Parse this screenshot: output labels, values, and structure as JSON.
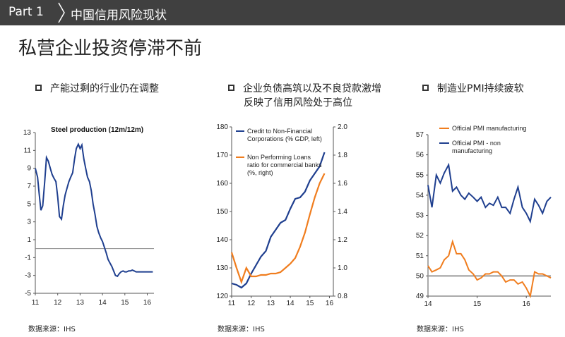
{
  "header": {
    "part": "Part  1",
    "title": "中国信用风险现状"
  },
  "main_title": "私营企业投资停滞不前",
  "bullets": [
    {
      "line1": "产能过剩的行业仍在调整",
      "line2": ""
    },
    {
      "line1": "企业负债高筑以及不良贷款激增",
      "line2": "反映了信用风险处于高位"
    },
    {
      "line1": "制造业PMI持续疲软",
      "line2": ""
    }
  ],
  "sources": [
    "数据来源：IHS",
    "数据来源：IHS",
    "数据来源：IHS"
  ],
  "colors": {
    "navy": "#1f3f8f",
    "orange": "#f07d1e",
    "header_bg": "#404040",
    "gray_line": "#9a9a9a"
  },
  "chart_data": [
    {
      "type": "line",
      "title": "Steel production (12m/12m)",
      "xlabel": "",
      "ylabel": "",
      "x_ticks": [
        "11",
        "12",
        "13",
        "14",
        "15",
        "16"
      ],
      "ylim": [
        -5,
        13
      ],
      "y_ticks": [
        13,
        11,
        9,
        7,
        5,
        3,
        1,
        -1,
        -3,
        -5
      ],
      "series": [
        {
          "name": "Steel production (12m/12m)",
          "color": "#1f3f8f",
          "x": [
            11.0,
            11.1,
            11.17,
            11.25,
            11.33,
            11.42,
            11.5,
            11.58,
            11.67,
            11.75,
            11.83,
            11.92,
            12.0,
            12.08,
            12.17,
            12.25,
            12.33,
            12.42,
            12.5,
            12.58,
            12.67,
            12.75,
            12.83,
            12.92,
            13.0,
            13.08,
            13.17,
            13.25,
            13.33,
            13.42,
            13.5,
            13.58,
            13.67,
            13.75,
            13.83,
            13.92,
            14.0,
            14.08,
            14.17,
            14.25,
            14.33,
            14.42,
            14.5,
            14.58,
            14.67,
            14.75,
            14.83,
            14.92,
            15.0,
            15.08,
            15.17,
            15.25,
            15.33,
            15.42,
            15.5,
            15.58,
            15.67,
            15.75,
            15.83,
            15.92,
            16.0,
            16.08,
            16.17,
            16.25
          ],
          "y": [
            9,
            8,
            6.2,
            4.3,
            4.8,
            7.5,
            10.2,
            9.8,
            9.0,
            8.3,
            7.9,
            7.5,
            5.8,
            3.6,
            3.3,
            4.8,
            6.0,
            6.8,
            7.5,
            8.0,
            8.5,
            10.0,
            11.2,
            11.7,
            11.2,
            11.6,
            10.0,
            9.0,
            8.0,
            7.5,
            6.5,
            5.0,
            3.8,
            2.5,
            1.8,
            1.2,
            0.8,
            0.2,
            -0.5,
            -1.2,
            -1.6,
            -2.0,
            -2.5,
            -3.0,
            -3.1,
            -2.8,
            -2.6,
            -2.5,
            -2.6,
            -2.6,
            -2.5,
            -2.5,
            -2.4,
            -2.5,
            -2.6,
            -2.6,
            -2.6,
            -2.6,
            -2.6,
            -2.6,
            -2.6,
            -2.6,
            -2.6,
            -2.6
          ]
        }
      ]
    },
    {
      "type": "line",
      "x_ticks": [
        "11",
        "12",
        "13",
        "14",
        "15",
        "16"
      ],
      "ylim_left": [
        120,
        180
      ],
      "y_ticks_left": [
        180,
        170,
        160,
        150,
        140,
        130,
        120
      ],
      "ylim_right": [
        0.8,
        2.0
      ],
      "y_ticks_right": [
        "2.0",
        "1.8",
        "1.6",
        "1.4",
        "1.2",
        "1.0",
        "0.8"
      ],
      "series": [
        {
          "name": "Credit to Non-Financial Corporations (% GDP, left)",
          "axis": "left",
          "color": "#1f3f8f",
          "legend_lines": [
            "Credit to Non-Financial",
            "Corporations (% GDP, left)"
          ],
          "x": [
            11.0,
            11.25,
            11.5,
            11.75,
            12.0,
            12.25,
            12.5,
            12.75,
            13.0,
            13.25,
            13.5,
            13.75,
            14.0,
            14.25,
            14.5,
            14.75,
            15.0,
            15.25,
            15.5,
            15.75
          ],
          "y": [
            124.5,
            124.0,
            123.0,
            124.5,
            128.0,
            131.0,
            134.0,
            136.0,
            141.0,
            143.5,
            146.0,
            147.0,
            151.0,
            154.5,
            155.0,
            157.0,
            161.0,
            163.5,
            166.0,
            171.0
          ]
        },
        {
          "name": "Non Performing Loans ratio for commercial banks (%, right)",
          "axis": "right",
          "color": "#f07d1e",
          "legend_lines": [
            "Non Performing Loans",
            "ratio for commercial banks",
            "(%, right)"
          ],
          "x": [
            11.0,
            11.25,
            11.5,
            11.75,
            12.0,
            12.25,
            12.5,
            12.75,
            13.0,
            13.25,
            13.5,
            13.75,
            14.0,
            14.25,
            14.5,
            14.75,
            15.0,
            15.25,
            15.5,
            15.75
          ],
          "y": [
            1.11,
            1.0,
            0.9,
            1.0,
            0.94,
            0.94,
            0.95,
            0.95,
            0.96,
            0.96,
            0.97,
            1.0,
            1.03,
            1.07,
            1.15,
            1.25,
            1.38,
            1.5,
            1.6,
            1.67
          ]
        }
      ]
    },
    {
      "type": "line",
      "x_ticks": [
        "14",
        "15",
        "16"
      ],
      "ylim": [
        49,
        57
      ],
      "y_ticks": [
        57,
        56,
        55,
        54,
        53,
        52,
        51,
        50,
        49
      ],
      "reference_line": 50,
      "series": [
        {
          "name": "Official PMI manufacturing",
          "color": "#f07d1e",
          "legend_lines": [
            "Official PMI manufacturing"
          ],
          "x": [
            14.0,
            14.08,
            14.17,
            14.25,
            14.33,
            14.42,
            14.5,
            14.58,
            14.67,
            14.75,
            14.83,
            14.92,
            15.0,
            15.08,
            15.17,
            15.25,
            15.33,
            15.42,
            15.5,
            15.58,
            15.67,
            15.75,
            15.83,
            15.92,
            16.0,
            16.08,
            16.17,
            16.25,
            16.33,
            16.42,
            16.5
          ],
          "y": [
            50.5,
            50.2,
            50.3,
            50.4,
            50.8,
            51.0,
            51.7,
            51.1,
            51.1,
            50.8,
            50.3,
            50.1,
            49.8,
            49.9,
            50.1,
            50.1,
            50.2,
            50.2,
            50.0,
            49.7,
            49.8,
            49.8,
            49.6,
            49.7,
            49.4,
            49.0,
            50.2,
            50.1,
            50.1,
            50.0,
            49.9
          ]
        },
        {
          "name": "Official PMI - non manufacturing",
          "color": "#1f3f8f",
          "legend_lines": [
            "Official PMI - non",
            "manufacturing"
          ],
          "x": [
            14.0,
            14.08,
            14.17,
            14.25,
            14.33,
            14.42,
            14.5,
            14.58,
            14.67,
            14.75,
            14.83,
            14.92,
            15.0,
            15.08,
            15.17,
            15.25,
            15.33,
            15.42,
            15.5,
            15.58,
            15.67,
            15.75,
            15.83,
            15.92,
            16.0,
            16.08,
            16.17,
            16.25,
            16.33,
            16.42,
            16.5
          ],
          "y": [
            54.5,
            53.4,
            55.0,
            54.6,
            55.1,
            55.5,
            54.2,
            54.4,
            54.0,
            53.8,
            54.1,
            53.9,
            53.7,
            53.9,
            53.4,
            53.6,
            53.5,
            53.9,
            53.4,
            53.4,
            53.1,
            53.8,
            54.4,
            53.4,
            53.1,
            52.7,
            53.8,
            53.5,
            53.1,
            53.7,
            53.9
          ]
        }
      ]
    }
  ]
}
